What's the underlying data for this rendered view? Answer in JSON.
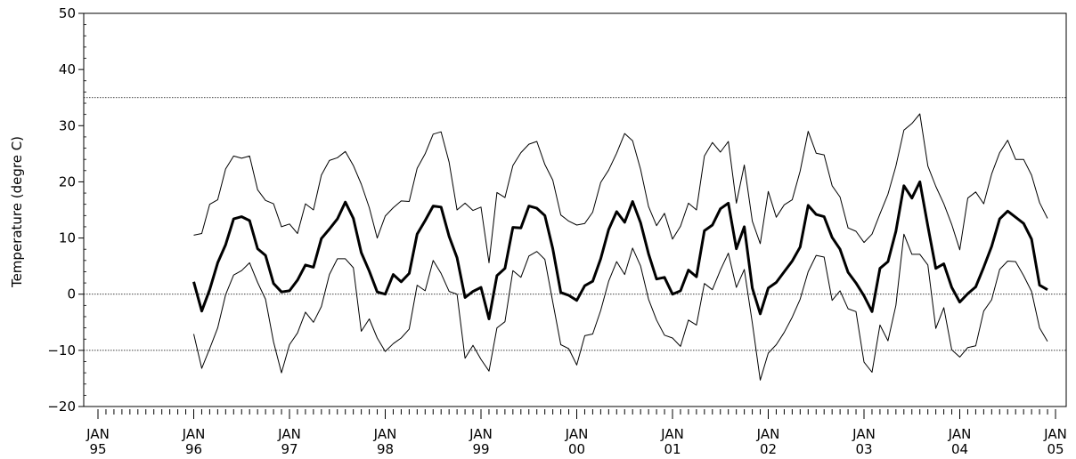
{
  "chart_data": {
    "type": "line",
    "title": "",
    "xlabel": "",
    "ylabel": "Temperature (degre C)",
    "ylim": [
      -20,
      50
    ],
    "yticks": [
      -20,
      -10,
      0,
      10,
      20,
      30,
      40,
      50
    ],
    "ytick_labels": [
      "−20",
      "−10",
      "0",
      "10",
      "20",
      "30",
      "40",
      "50"
    ],
    "xlim": [
      "1995-01",
      "2005-01"
    ],
    "xticks": [
      {
        "date": "1995-01",
        "month": "JAN",
        "year": "95"
      },
      {
        "date": "1996-01",
        "month": "JAN",
        "year": "96"
      },
      {
        "date": "1997-01",
        "month": "JAN",
        "year": "97"
      },
      {
        "date": "1998-01",
        "month": "JAN",
        "year": "98"
      },
      {
        "date": "1999-01",
        "month": "JAN",
        "year": "99"
      },
      {
        "date": "2000-01",
        "month": "JAN",
        "year": "00"
      },
      {
        "date": "2001-01",
        "month": "JAN",
        "year": "01"
      },
      {
        "date": "2002-01",
        "month": "JAN",
        "year": "02"
      },
      {
        "date": "2003-01",
        "month": "JAN",
        "year": "03"
      },
      {
        "date": "2004-01",
        "month": "JAN",
        "year": "04"
      },
      {
        "date": "2005-01",
        "month": "JAN",
        "year": "05"
      }
    ],
    "reference_lines": [
      35,
      0,
      -10
    ],
    "grid": false,
    "series_start": "1996-01",
    "series": [
      {
        "style": "thin",
        "values": [
          10.5,
          10.8,
          16.0,
          16.8,
          22.3,
          24.6,
          24.2,
          24.6,
          18.6,
          16.7,
          16.1,
          12.0,
          12.5,
          10.8,
          16.1,
          15.0,
          21.2,
          23.8,
          24.3,
          25.4,
          22.9,
          19.6,
          15.4,
          10.0,
          13.9,
          15.4,
          16.6,
          16.5,
          22.4,
          25.0,
          28.5,
          28.9,
          23.5,
          15.0,
          16.2,
          14.9,
          15.5,
          5.6,
          18.1,
          17.2,
          22.9,
          25.2,
          26.7,
          27.2,
          23.1,
          20.3,
          14.1,
          13.0,
          12.3,
          12.6,
          14.6,
          19.9,
          22.1,
          25.1,
          28.6,
          27.3,
          22.2,
          15.6,
          12.2,
          14.4,
          9.8,
          12.1,
          16.2,
          15.0,
          24.6,
          27.0,
          25.3,
          27.2,
          16.2,
          23.0,
          13.0,
          9.0,
          18.3,
          13.7,
          15.9,
          16.8,
          21.9,
          29.0,
          25.1,
          24.8,
          19.3,
          17.3,
          11.8,
          11.2,
          9.2,
          10.7,
          14.3,
          17.8,
          22.8,
          29.2,
          30.4,
          32.1,
          22.8,
          19.2,
          16.1,
          12.4,
          7.9,
          17.1,
          18.2,
          16.1,
          21.4,
          25.2,
          27.4,
          24.0,
          24.0,
          21.2,
          16.3,
          13.5
        ]
      },
      {
        "style": "thick",
        "values": [
          2.2,
          -3.0,
          0.8,
          5.6,
          8.8,
          13.4,
          13.8,
          13.1,
          8.1,
          6.9,
          1.9,
          0.4,
          0.6,
          2.5,
          5.2,
          4.8,
          9.9,
          11.6,
          13.4,
          16.4,
          13.5,
          7.4,
          4.1,
          0.4,
          0.0,
          3.5,
          2.2,
          3.7,
          10.7,
          13.1,
          15.7,
          15.5,
          10.3,
          6.5,
          -0.6,
          0.5,
          1.2,
          -4.4,
          3.3,
          4.6,
          11.9,
          11.8,
          15.7,
          15.3,
          14.0,
          8.1,
          0.3,
          -0.2,
          -1.1,
          1.5,
          2.3,
          6.3,
          11.5,
          14.7,
          12.8,
          16.5,
          12.7,
          7.2,
          2.7,
          3.0,
          0.0,
          0.6,
          4.3,
          3.1,
          11.3,
          12.3,
          15.2,
          16.2,
          8.1,
          12.0,
          1.1,
          -3.5,
          1.1,
          2.1,
          4.0,
          5.9,
          8.4,
          15.8,
          14.2,
          13.8,
          10.1,
          8.0,
          3.9,
          2.0,
          -0.3,
          -3.1,
          4.6,
          5.8,
          11.2,
          19.3,
          17.1,
          20.0,
          12.1,
          4.6,
          5.4,
          1.2,
          -1.4,
          0.1,
          1.3,
          4.8,
          8.5,
          13.4,
          14.8,
          13.7,
          12.6,
          9.8,
          1.6,
          0.8
        ]
      },
      {
        "style": "thin",
        "values": [
          -7.1,
          -13.2,
          -9.7,
          -6.0,
          -0.1,
          3.4,
          4.2,
          5.6,
          2.1,
          -0.9,
          -8.5,
          -14.0,
          -9.0,
          -6.9,
          -3.2,
          -5.0,
          -2.2,
          3.5,
          6.3,
          6.3,
          4.7,
          -6.6,
          -4.4,
          -7.8,
          -10.2,
          -8.8,
          -7.8,
          -6.2,
          1.6,
          0.6,
          6.0,
          3.7,
          0.5,
          0.0,
          -11.4,
          -9.1,
          -11.6,
          -13.7,
          -6.0,
          -4.9,
          4.2,
          3.0,
          6.8,
          7.6,
          6.2,
          -1.4,
          -9.0,
          -9.7,
          -12.6,
          -7.4,
          -7.1,
          -2.9,
          2.3,
          5.8,
          3.5,
          8.2,
          5.0,
          -0.9,
          -4.6,
          -7.3,
          -7.8,
          -9.3,
          -4.6,
          -5.5,
          1.9,
          0.8,
          4.3,
          7.3,
          1.2,
          4.4,
          -5.1,
          -15.3,
          -10.5,
          -9.0,
          -6.8,
          -4.1,
          -0.9,
          4.0,
          6.9,
          6.6,
          -1.1,
          0.6,
          -2.6,
          -3.1,
          -12.1,
          -13.9,
          -5.5,
          -8.3,
          -2.0,
          10.7,
          7.1,
          7.1,
          5.2,
          -6.1,
          -2.4,
          -9.9,
          -11.2,
          -9.5,
          -9.2,
          -3.0,
          -1.0,
          4.4,
          5.9,
          5.8,
          3.3,
          0.5,
          -6.0,
          -8.4
        ]
      }
    ]
  }
}
